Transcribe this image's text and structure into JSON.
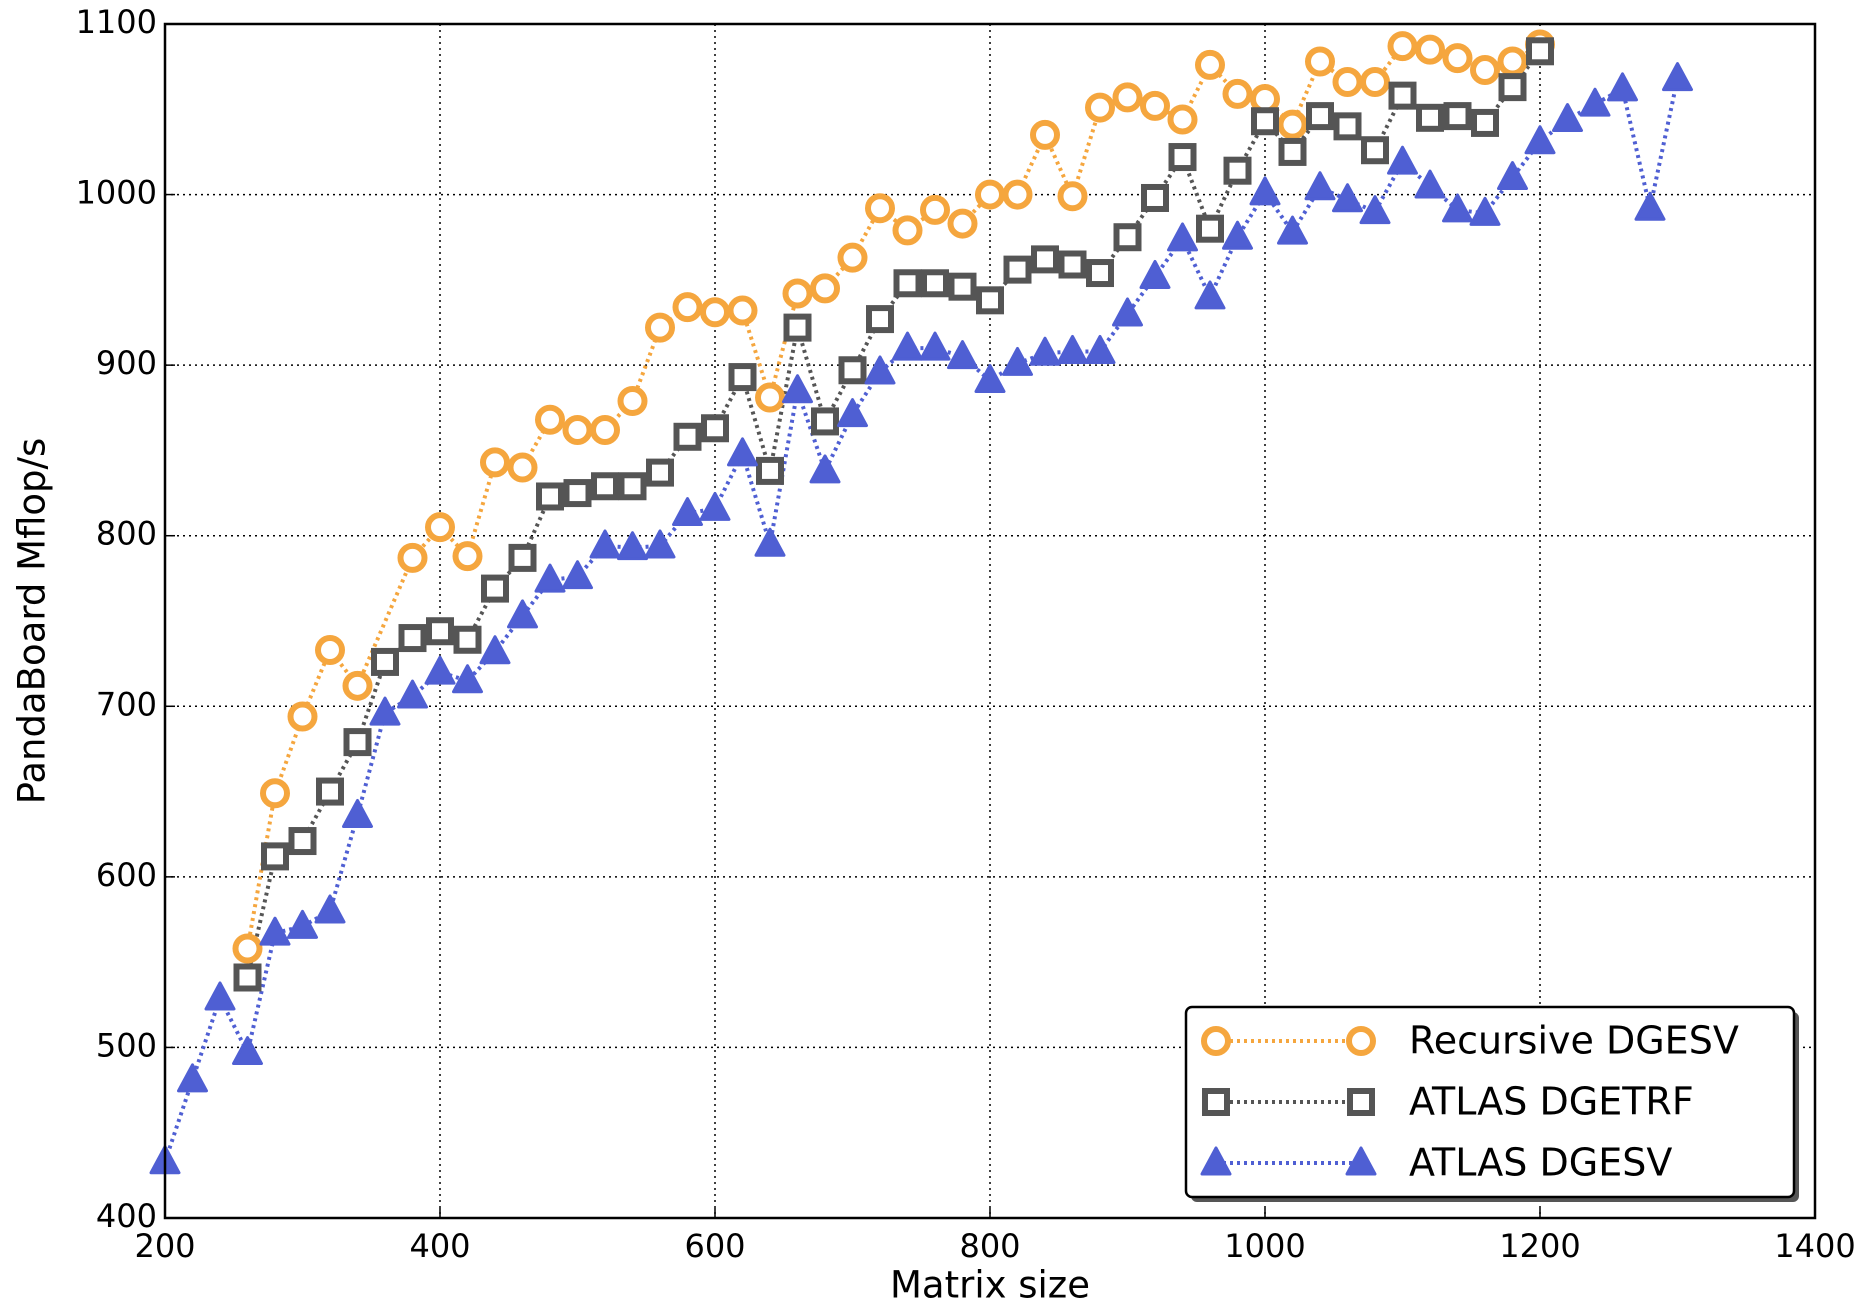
{
  "chart_data": {
    "type": "line",
    "x_label": "Matrix size",
    "y_label": "PandaBoard Mflop/s",
    "xlim": [
      200,
      1400
    ],
    "ylim": [
      400,
      1100
    ],
    "xticks": [
      200,
      400,
      600,
      800,
      1000,
      1200,
      1400
    ],
    "yticks": [
      400,
      500,
      600,
      700,
      800,
      900,
      1000,
      1100
    ],
    "grid": true,
    "legend": "lower right",
    "series": [
      {
        "name": "Recursive DGESV",
        "color": "#f5a63e",
        "marker": "circle",
        "x": [
          260,
          280,
          300,
          320,
          340,
          380,
          400,
          420,
          440,
          460,
          480,
          500,
          520,
          540,
          560,
          580,
          600,
          620,
          640,
          660,
          680,
          700,
          720,
          740,
          760,
          780,
          800,
          820,
          840,
          860,
          880,
          900,
          920,
          940,
          960,
          980,
          1000,
          1020,
          1040,
          1060,
          1080,
          1100,
          1120,
          1140,
          1160,
          1180,
          1200
        ],
        "values": [
          558,
          649,
          694,
          733,
          712,
          787,
          805,
          788,
          843,
          840,
          868,
          862,
          862,
          879,
          922,
          934,
          931,
          932,
          881,
          942,
          945,
          963,
          992,
          979,
          991,
          983,
          1000,
          1000,
          1035,
          999,
          1051,
          1057,
          1052,
          1044,
          1076,
          1059,
          1056,
          1041,
          1078,
          1066,
          1066,
          1087,
          1085,
          1080,
          1073,
          1078,
          1088
        ]
      },
      {
        "name": "ATLAS DGETRF",
        "color": "#555555",
        "marker": "square",
        "x": [
          260,
          280,
          300,
          320,
          340,
          360,
          380,
          400,
          420,
          440,
          460,
          480,
          500,
          520,
          540,
          560,
          580,
          600,
          620,
          640,
          660,
          680,
          700,
          720,
          740,
          760,
          780,
          800,
          820,
          840,
          860,
          880,
          900,
          920,
          940,
          960,
          980,
          1000,
          1020,
          1040,
          1060,
          1080,
          1100,
          1120,
          1140,
          1160,
          1180,
          1200
        ],
        "values": [
          541,
          612,
          621,
          650,
          679,
          726,
          740,
          744,
          739,
          769,
          787,
          823,
          825,
          829,
          829,
          837,
          858,
          863,
          893,
          838,
          922,
          867,
          897,
          927,
          948,
          948,
          946,
          938,
          956,
          962,
          959,
          954,
          975,
          998,
          1022,
          980,
          1014,
          1043,
          1025,
          1046,
          1040,
          1026,
          1058,
          1045,
          1046,
          1042,
          1063,
          1084
        ]
      },
      {
        "name": "ATLAS DGESV",
        "color": "#4f5fd3",
        "marker": "triangle",
        "x": [
          200,
          220,
          240,
          260,
          280,
          300,
          320,
          340,
          360,
          380,
          400,
          420,
          440,
          460,
          480,
          500,
          520,
          540,
          560,
          580,
          600,
          620,
          640,
          660,
          680,
          700,
          720,
          740,
          760,
          780,
          800,
          820,
          840,
          860,
          880,
          900,
          920,
          940,
          960,
          980,
          1000,
          1020,
          1040,
          1060,
          1080,
          1100,
          1120,
          1140,
          1160,
          1180,
          1200,
          1220,
          1240,
          1260,
          1280,
          1300
        ],
        "values": [
          433,
          481,
          529,
          497,
          567,
          571,
          580,
          636,
          696,
          706,
          720,
          715,
          732,
          753,
          774,
          776,
          794,
          793,
          794,
          813,
          816,
          848,
          795,
          885,
          838,
          871,
          896,
          910,
          910,
          905,
          891,
          901,
          907,
          908,
          908,
          930,
          952,
          974,
          940,
          975,
          1001,
          978,
          1004,
          997,
          990,
          1019,
          1005,
          991,
          989,
          1010,
          1031,
          1044,
          1053,
          1062,
          992,
          1068
        ]
      }
    ]
  }
}
